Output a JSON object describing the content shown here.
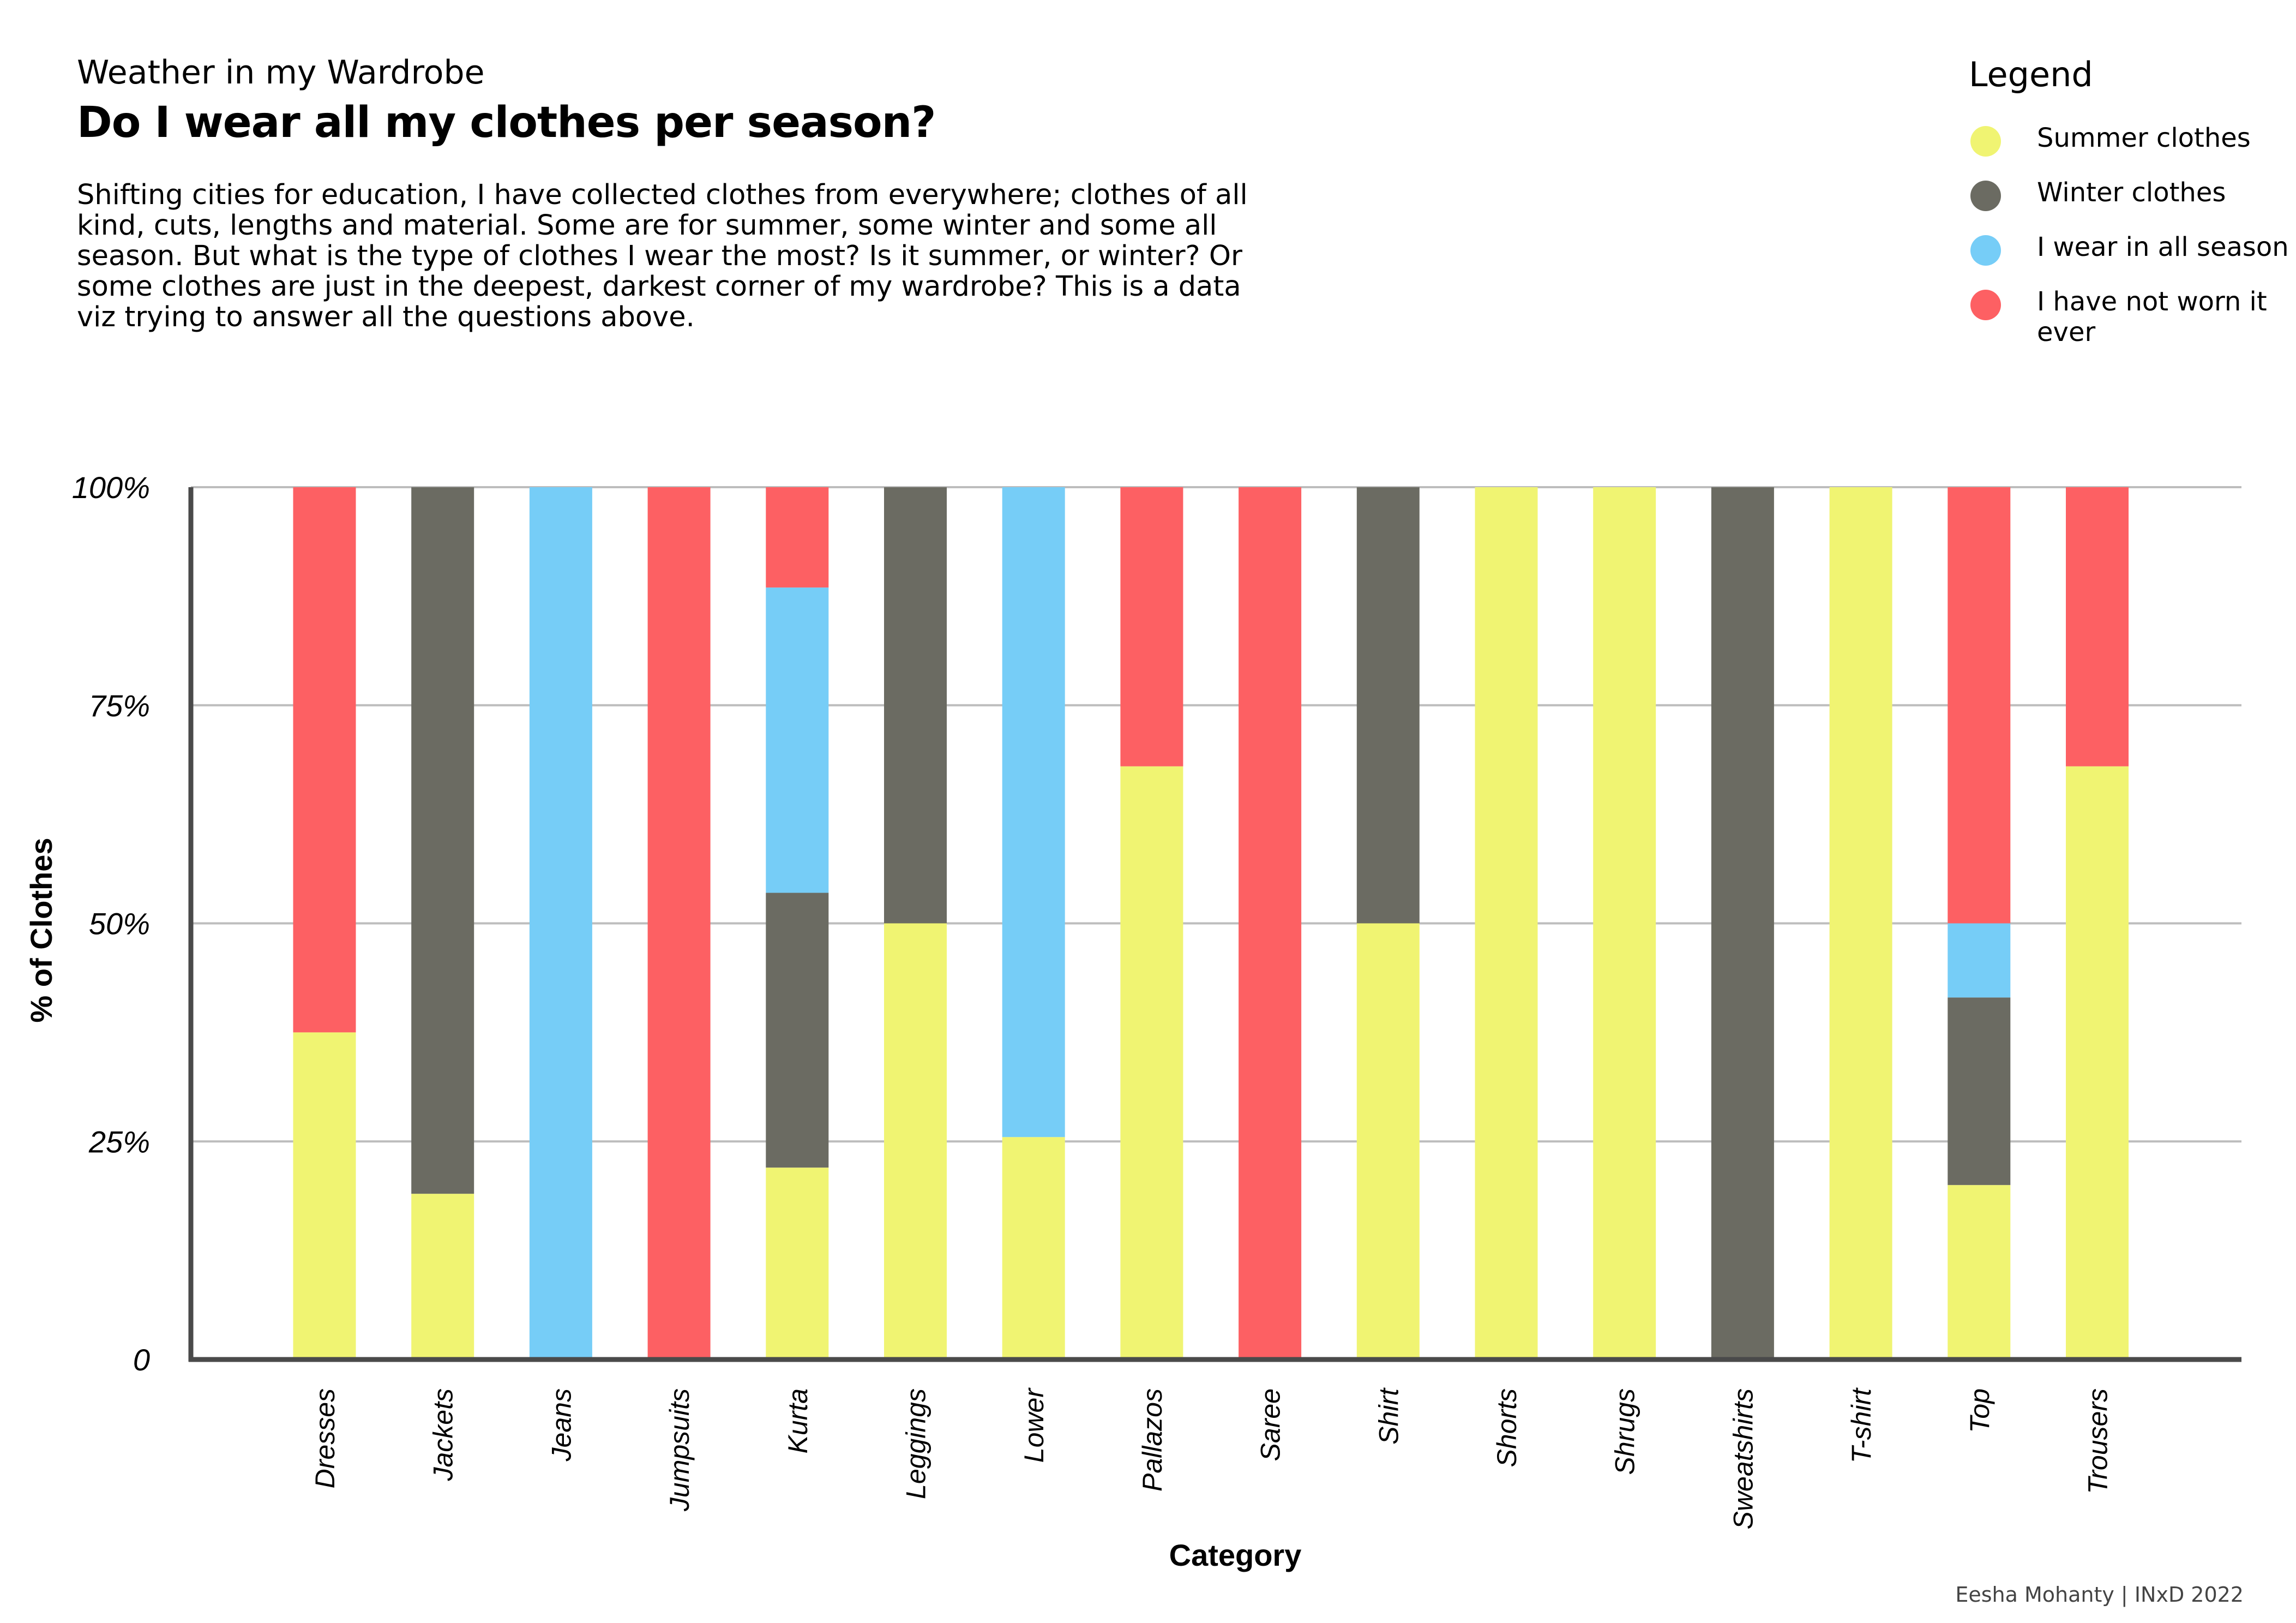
{
  "header": {
    "subtitle": "Weather in my Wardrobe",
    "title": "Do I wear all my clothes per season?",
    "description": "Shifting cities for education, I have collected clothes from everywhere; clothes of all kind, cuts, lengths and material. Some are for summer, some winter and some all season. But what is the type of clothes I wear the most? Is it summer, or winter? Or some clothes are just in the deepest, darkest corner of my wardrobe? This is a data viz trying to answer all the questions above."
  },
  "legend": {
    "title": "Legend",
    "items": [
      {
        "label": "Summer clothes",
        "color": "#f0f472"
      },
      {
        "label": "Winter clothes",
        "color": "#6b6b62"
      },
      {
        "label": "I wear in all season",
        "color": "#76cdf7"
      },
      {
        "label": "I have not worn it ever",
        "color": "#fd6063"
      }
    ]
  },
  "footer": {
    "credit": "Eesha Mohanty | INxD 2022"
  },
  "chart_data": {
    "type": "bar",
    "stacked": true,
    "title": "",
    "xlabel": "Category",
    "ylabel": "% of Clothes",
    "ylim": [
      0,
      100
    ],
    "yticks": [
      0,
      25,
      50,
      75,
      100
    ],
    "ytick_labels": [
      "0",
      "25%",
      "50%",
      "75%",
      "100%"
    ],
    "grid": true,
    "categories": [
      "Dresses",
      "Jackets",
      "Jeans",
      "Jumpsuits",
      "Kurta",
      "Leggings",
      "Lower",
      "Pallazos",
      "Saree",
      "Shirt",
      "Shorts",
      "Shrugs",
      "Sweatshirts",
      "T-shirt",
      "Top",
      "Trousers"
    ],
    "series": [
      {
        "name": "Summer clothes",
        "color": "#f0f472",
        "values": [
          37.5,
          19,
          0,
          0,
          22,
          50,
          25.5,
          68,
          0,
          50,
          100,
          100,
          0,
          100,
          20,
          68
        ]
      },
      {
        "name": "Winter clothes",
        "color": "#6b6b62",
        "values": [
          0,
          81,
          0,
          0,
          31.5,
          50,
          0,
          0,
          0,
          50,
          0,
          0,
          100,
          0,
          21.5,
          0
        ]
      },
      {
        "name": "I wear in all season",
        "color": "#76cdf7",
        "values": [
          0,
          0,
          100,
          0,
          35,
          0,
          74.5,
          0,
          0,
          0,
          0,
          0,
          0,
          0,
          8.5,
          0
        ]
      },
      {
        "name": "I have not worn it ever",
        "color": "#fd6063",
        "values": [
          62.5,
          0,
          0,
          100,
          11.5,
          0,
          0,
          32,
          100,
          0,
          0,
          0,
          0,
          0,
          50,
          32
        ]
      }
    ]
  }
}
